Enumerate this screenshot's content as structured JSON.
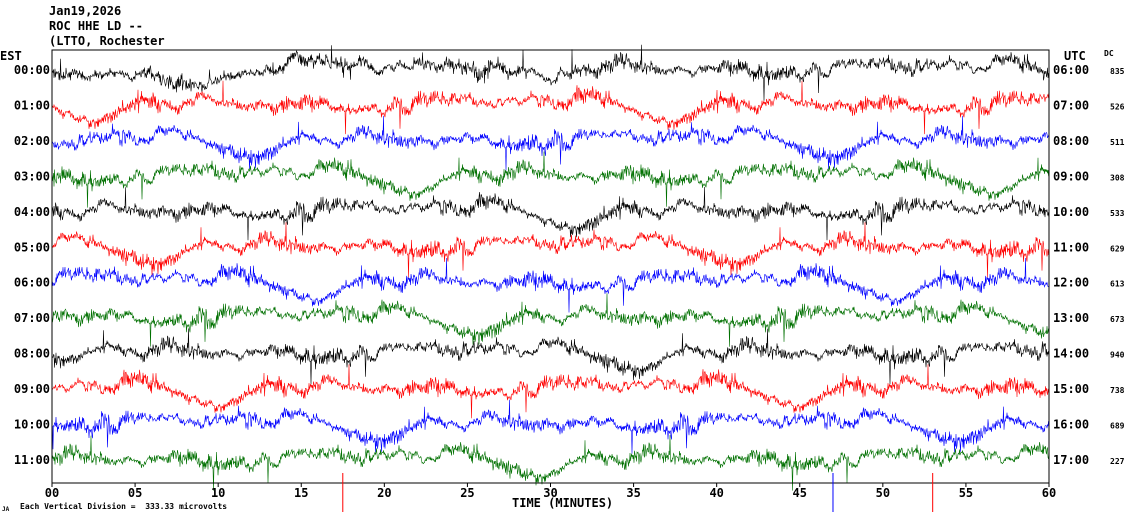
{
  "header": {
    "date": "Jan19,2026",
    "station": "ROC HHE LD --",
    "location": "(LTTO, Rochester"
  },
  "chart_data": {
    "type": "line",
    "title": "",
    "left_axis_title": "EST",
    "right_axis_title": "UTC",
    "dc_column_title": "DC",
    "xlabel": "TIME (MINUTES)",
    "x_ticks": [
      "00",
      "05",
      "10",
      "15",
      "20",
      "25",
      "30",
      "35",
      "40",
      "45",
      "50",
      "55",
      "60"
    ],
    "xlim": [
      0,
      60
    ],
    "scale_note": "Each Vertical Division =  333.33 microvolts",
    "corner_mark": "JA",
    "colors": [
      "#000000",
      "#ff0000",
      "#0000ff",
      "#007000"
    ],
    "series": [
      {
        "est": "00:00",
        "utc": "06:00",
        "dc": "835"
      },
      {
        "est": "01:00",
        "utc": "07:00",
        "dc": "526"
      },
      {
        "est": "02:00",
        "utc": "08:00",
        "dc": "511"
      },
      {
        "est": "03:00",
        "utc": "09:00",
        "dc": "308"
      },
      {
        "est": "04:00",
        "utc": "10:00",
        "dc": "533"
      },
      {
        "est": "05:00",
        "utc": "11:00",
        "dc": "629"
      },
      {
        "est": "06:00",
        "utc": "12:00",
        "dc": "613"
      },
      {
        "est": "07:00",
        "utc": "13:00",
        "dc": "673"
      },
      {
        "est": "08:00",
        "utc": "14:00",
        "dc": "940"
      },
      {
        "est": "09:00",
        "utc": "15:00",
        "dc": "738"
      },
      {
        "est": "10:00",
        "utc": "16:00",
        "dc": "689"
      },
      {
        "est": "11:00",
        "utc": "17:00",
        "dc": "227"
      }
    ],
    "spike_minutes": [
      17.5,
      47.0,
      53.0
    ]
  }
}
